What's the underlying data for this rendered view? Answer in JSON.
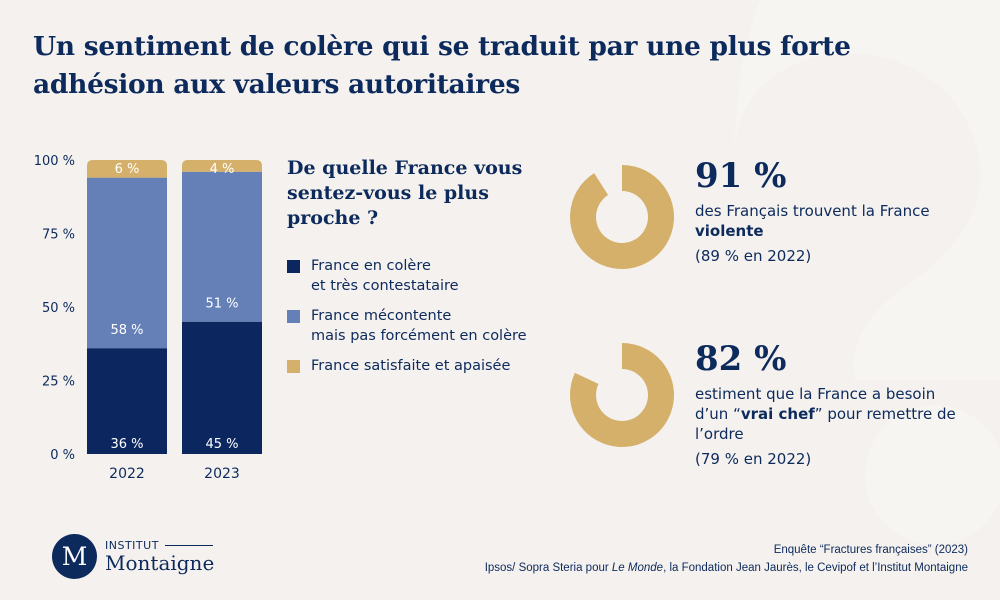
{
  "title": "Un sentiment de colère qui se traduit par une plus forte adhésion aux valeurs autoritaires",
  "colors": {
    "navy": "#0c2660",
    "mid_blue": "#6480b6",
    "gold": "#d4b06a",
    "background": "#f4f1ee",
    "text": "#0d2a5c"
  },
  "chart_data": {
    "type": "bar",
    "stacked": true,
    "title": "De quelle France vous sentez-vous le plus proche ?",
    "categories": [
      "2022",
      "2023"
    ],
    "series": [
      {
        "name": "France en colère et très contestataire",
        "color": "#0c2660",
        "values": [
          36,
          45
        ],
        "labels": [
          "36 %",
          "45 %"
        ]
      },
      {
        "name": "France mécontente mais pas forcément en colère",
        "color": "#6480b6",
        "values": [
          58,
          51
        ],
        "labels": [
          "58 %",
          "51 %"
        ]
      },
      {
        "name": "France satisfaite et apaisée",
        "color": "#d4b06a",
        "values": [
          6,
          4
        ],
        "labels": [
          "6 %",
          "4 %"
        ]
      }
    ],
    "yticks": [
      {
        "value": 0,
        "label": "0 %"
      },
      {
        "value": 25,
        "label": "25 %"
      },
      {
        "value": 50,
        "label": "50 %"
      },
      {
        "value": 75,
        "label": "75 %"
      },
      {
        "value": 100,
        "label": "100 %"
      }
    ],
    "ylim": [
      0,
      100
    ],
    "xlabel": "",
    "ylabel": "",
    "grid": false,
    "legend_position": "right"
  },
  "question": "De quelle France vous sentez-vous le plus proche ?",
  "legend": [
    {
      "label": "France en colère\net très contestataire",
      "color": "#0c2660"
    },
    {
      "label": "France mécontente\nmais pas forcément en colère",
      "color": "#6480b6"
    },
    {
      "label": "France satisfaite et apaisée",
      "color": "#d4b06a"
    }
  ],
  "stats": [
    {
      "value": 91,
      "big": "91 %",
      "text_before": "des Français trouvent la France ",
      "text_bold": "violente",
      "text_after": "",
      "previous": "(89 % en 2022)"
    },
    {
      "value": 82,
      "big": "82 %",
      "text_before": "estiment que la France a besoin d’un “",
      "text_bold": "vrai chef",
      "text_after": "” pour remettre de l’ordre",
      "previous": "(79 % en 2022)"
    }
  ],
  "logo": {
    "monogram": "M",
    "small": "INSTITUT",
    "big": "Montaigne"
  },
  "source": {
    "line1": "Enquête “Fractures françaises” (2023)",
    "line2_before": "Ipsos/ Sopra Steria pour ",
    "line2_italic": "Le Monde",
    "line2_after": ", la Fondation Jean Jaurès, le Cevipof et l’Institut Montaigne"
  }
}
